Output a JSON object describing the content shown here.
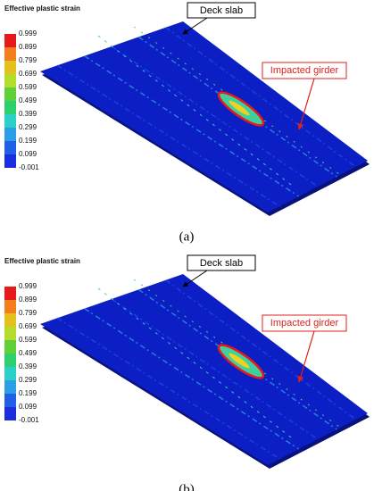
{
  "panels": [
    {
      "legend_title": "Effective plastic strain",
      "scale_labels": [
        "0.999",
        "0.899",
        "0.799",
        "0.699",
        "0.599",
        "0.499",
        "0.399",
        "0.299",
        "0.199",
        "0.099",
        "-0.001"
      ],
      "deck_slab": "Deck slab",
      "impacted_girder": "Impacted girder",
      "caption": "(a)"
    },
    {
      "legend_title": "Effective plastic strain",
      "scale_labels": [
        "0.999",
        "0.899",
        "0.799",
        "0.699",
        "0.599",
        "0.499",
        "0.399",
        "0.299",
        "0.199",
        "0.099",
        "-0.001"
      ],
      "deck_slab": "Deck slab",
      "impacted_girder": "Impacted girder",
      "caption": "(b)"
    }
  ]
}
